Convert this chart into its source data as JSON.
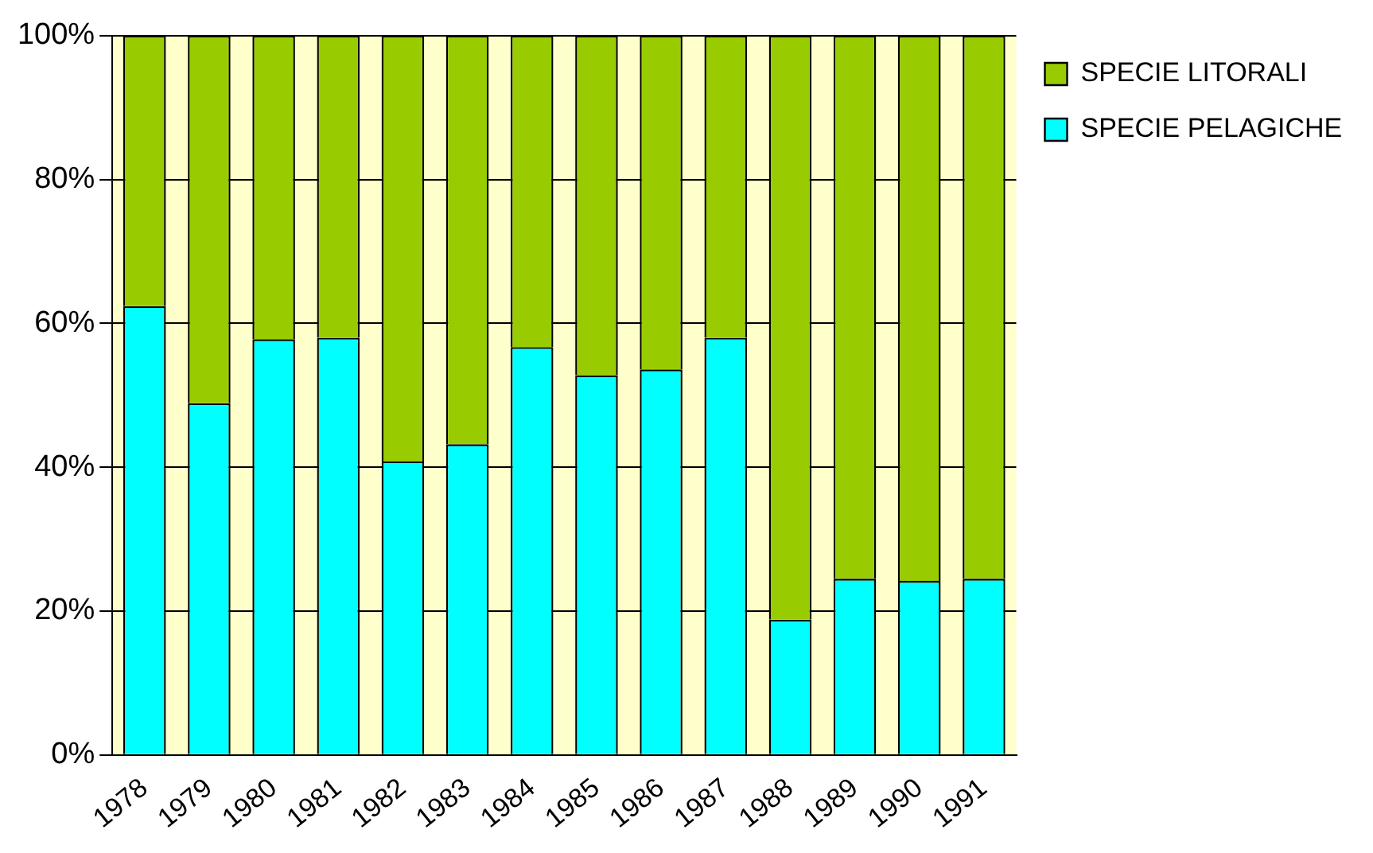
{
  "chart_data": {
    "type": "bar",
    "stacked": true,
    "categories": [
      "1978",
      "1979",
      "1980",
      "1981",
      "1982",
      "1983",
      "1984",
      "1985",
      "1986",
      "1987",
      "1988",
      "1989",
      "1990",
      "1991"
    ],
    "series": [
      {
        "name": "SPECIE PELAGICHE",
        "color": "#00ffff",
        "values": [
          62.4,
          48.9,
          57.8,
          58.0,
          40.8,
          43.2,
          56.7,
          52.8,
          53.6,
          58.0,
          18.8,
          24.5,
          24.2,
          24.5
        ]
      },
      {
        "name": "SPECIE LITORALI",
        "color": "#99cc00",
        "values": [
          37.6,
          51.1,
          42.2,
          42.0,
          59.2,
          56.8,
          43.3,
          47.2,
          46.4,
          42.0,
          81.2,
          75.5,
          75.8,
          75.5
        ]
      }
    ],
    "ylim": [
      0,
      100
    ],
    "yticks": [
      {
        "value": 0,
        "label": "0%"
      },
      {
        "value": 20,
        "label": "20%"
      },
      {
        "value": 40,
        "label": "40%"
      },
      {
        "value": 60,
        "label": "60%"
      },
      {
        "value": 80,
        "label": "80%"
      },
      {
        "value": 100,
        "label": "100%"
      }
    ],
    "grid": "y",
    "legend": "top right"
  }
}
